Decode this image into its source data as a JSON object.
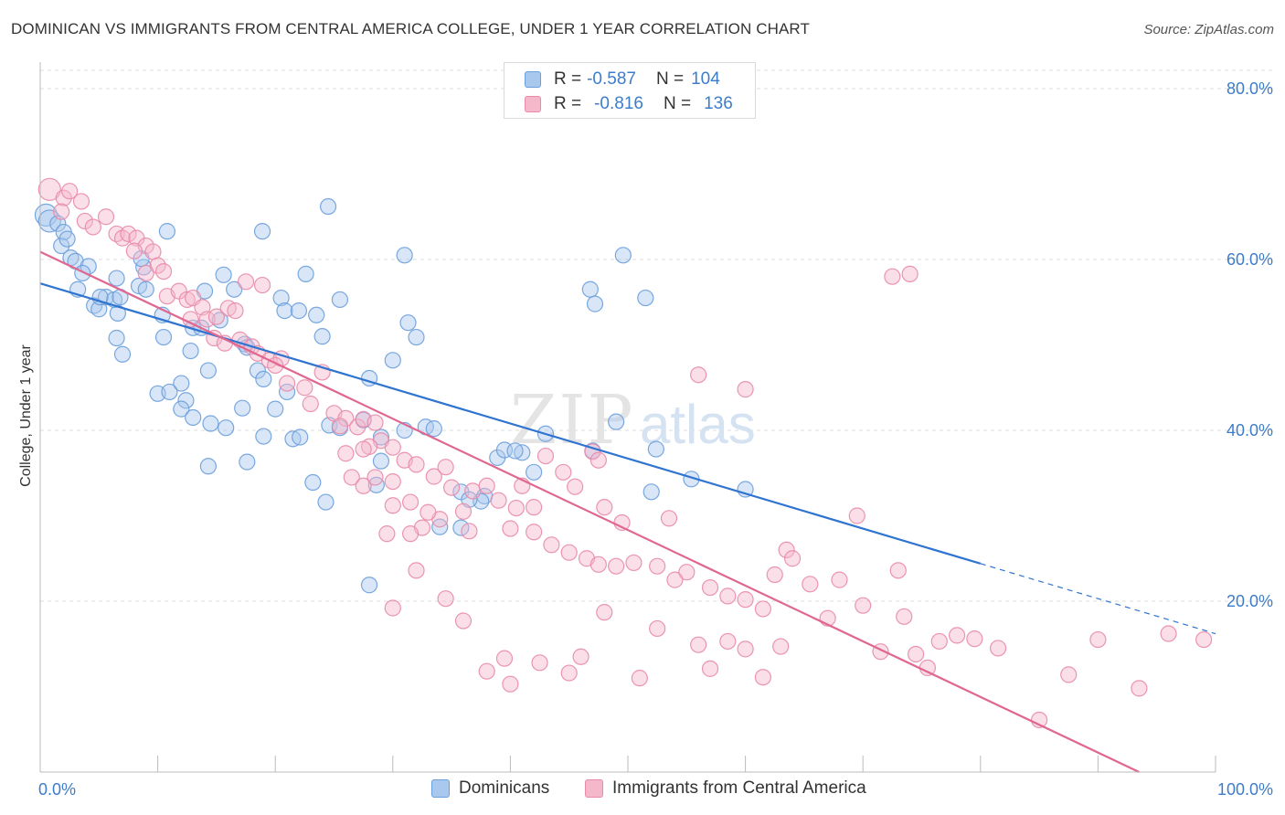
{
  "header": {
    "title": "DOMINICAN VS IMMIGRANTS FROM CENTRAL AMERICA COLLEGE, UNDER 1 YEAR CORRELATION CHART",
    "source": "Source: ZipAtlas.com"
  },
  "watermark": {
    "zip": "ZIP",
    "atlas": "atlas"
  },
  "legend_box": {
    "rows": [
      {
        "r_label": "R =",
        "r_value": "-0.587",
        "n_label": "N =",
        "n_value": "104"
      },
      {
        "r_label": "R =",
        "r_value": "-0.816",
        "n_label": "N =",
        "n_value": "136"
      }
    ]
  },
  "bottom_legend": {
    "items": [
      "Dominicans",
      "Immigrants from Central America"
    ]
  },
  "colors": {
    "blue_fill": "#a9c8ee",
    "blue_stroke": "#6b9fdc",
    "blue_line": "#2f74d0",
    "pink_fill": "#f5b8cb",
    "pink_stroke": "#e98aa8",
    "pink_line": "#e0678f",
    "grid": "#dddddd",
    "axis_text": "#3d7cc9"
  },
  "chart_data": {
    "type": "scatter",
    "title": "DOMINICAN VS IMMIGRANTS FROM CENTRAL AMERICA COLLEGE, UNDER 1 YEAR CORRELATION CHART",
    "xlabel": "",
    "ylabel": "College, Under 1 year",
    "xlim": [
      0,
      100
    ],
    "ylim": [
      0,
      85
    ],
    "x_tick_labels": [
      "0.0%",
      "100.0%"
    ],
    "y_ticks": [
      20,
      40,
      60,
      80
    ],
    "y_tick_labels": [
      "20.0%",
      "40.0%",
      "60.0%",
      "80.0%"
    ],
    "grid": true,
    "legend_position": "top-center",
    "series": [
      {
        "name": "Dominicans",
        "R": -0.587,
        "N": 104,
        "trend": {
          "x": [
            0,
            80
          ],
          "y": [
            57.2,
            24.4
          ],
          "dashed_to": [
            100,
            16.2
          ]
        },
        "points": [
          [
            0.5,
            65.2
          ],
          [
            0.8,
            64.5
          ],
          [
            1.5,
            64.2
          ],
          [
            2.0,
            63.2
          ],
          [
            1.8,
            61.6
          ],
          [
            2.3,
            62.4
          ],
          [
            2.6,
            60.2
          ],
          [
            3.0,
            59.8
          ],
          [
            4.1,
            59.2
          ],
          [
            3.6,
            58.4
          ],
          [
            3.2,
            56.5
          ],
          [
            4.6,
            54.6
          ],
          [
            5.0,
            54.2
          ],
          [
            6.6,
            53.7
          ],
          [
            5.6,
            55.6
          ],
          [
            6.3,
            55.3
          ],
          [
            6.8,
            55.6
          ],
          [
            5.1,
            55.6
          ],
          [
            6.5,
            57.8
          ],
          [
            8.4,
            56.9
          ],
          [
            9.0,
            56.5
          ],
          [
            8.8,
            59.1
          ],
          [
            8.6,
            60.1
          ],
          [
            10.8,
            63.3
          ],
          [
            10.4,
            53.5
          ],
          [
            6.5,
            50.8
          ],
          [
            7.0,
            48.9
          ],
          [
            10.5,
            50.9
          ],
          [
            12.8,
            49.3
          ],
          [
            13.0,
            52.0
          ],
          [
            13.7,
            52.0
          ],
          [
            15.3,
            52.9
          ],
          [
            14.0,
            56.3
          ],
          [
            15.6,
            58.2
          ],
          [
            16.5,
            56.5
          ],
          [
            18.9,
            63.3
          ],
          [
            17.4,
            50.1
          ],
          [
            17.6,
            49.7
          ],
          [
            18.5,
            47.0
          ],
          [
            19.0,
            46.0
          ],
          [
            20.5,
            55.5
          ],
          [
            20.8,
            54.0
          ],
          [
            22.0,
            54.0
          ],
          [
            22.6,
            58.3
          ],
          [
            23.5,
            53.5
          ],
          [
            24.0,
            51.0
          ],
          [
            25.5,
            55.3
          ],
          [
            24.5,
            66.2
          ],
          [
            14.3,
            47.0
          ],
          [
            12.0,
            45.5
          ],
          [
            10.0,
            44.3
          ],
          [
            11.0,
            44.5
          ],
          [
            12.4,
            43.5
          ],
          [
            14.5,
            40.8
          ],
          [
            12.0,
            42.5
          ],
          [
            13.0,
            41.5
          ],
          [
            15.8,
            40.3
          ],
          [
            17.2,
            42.6
          ],
          [
            19.0,
            39.3
          ],
          [
            20.0,
            42.5
          ],
          [
            21.5,
            39.0
          ],
          [
            22.1,
            39.2
          ],
          [
            24.6,
            40.6
          ],
          [
            25.5,
            40.3
          ],
          [
            28.0,
            46.1
          ],
          [
            30.0,
            48.2
          ],
          [
            32.0,
            50.9
          ],
          [
            31.3,
            52.6
          ],
          [
            31.0,
            60.5
          ],
          [
            21.0,
            44.5
          ],
          [
            14.3,
            35.8
          ],
          [
            17.6,
            36.3
          ],
          [
            23.2,
            33.9
          ],
          [
            24.3,
            31.6
          ],
          [
            27.5,
            41.2
          ],
          [
            29.0,
            39.2
          ],
          [
            31.0,
            40.0
          ],
          [
            29.0,
            36.4
          ],
          [
            28.6,
            33.6
          ],
          [
            32.8,
            40.4
          ],
          [
            33.5,
            40.2
          ],
          [
            35.8,
            32.8
          ],
          [
            37.8,
            32.3
          ],
          [
            38.9,
            36.8
          ],
          [
            39.5,
            37.7
          ],
          [
            41.0,
            37.4
          ],
          [
            40.4,
            37.6
          ],
          [
            42.0,
            35.1
          ],
          [
            43.0,
            39.6
          ],
          [
            47.0,
            37.6
          ],
          [
            46.8,
            56.5
          ],
          [
            47.2,
            54.8
          ],
          [
            49.0,
            41.0
          ],
          [
            52.0,
            32.8
          ],
          [
            55.4,
            34.3
          ],
          [
            51.5,
            55.5
          ],
          [
            49.6,
            60.5
          ],
          [
            52.4,
            37.8
          ],
          [
            60.0,
            33.1
          ],
          [
            35.8,
            28.6
          ],
          [
            34.0,
            28.7
          ],
          [
            37.5,
            31.7
          ],
          [
            36.5,
            31.9
          ],
          [
            28.0,
            21.9
          ]
        ]
      },
      {
        "name": "Immigrants from Central America",
        "R": -0.816,
        "N": 136,
        "trend": {
          "x": [
            0,
            93.5
          ],
          "y": [
            60.9,
            0
          ]
        },
        "points": [
          [
            0.8,
            68.2
          ],
          [
            2.0,
            67.2
          ],
          [
            2.5,
            68.0
          ],
          [
            3.5,
            66.8
          ],
          [
            5.6,
            65.0
          ],
          [
            1.8,
            65.6
          ],
          [
            3.8,
            64.5
          ],
          [
            4.5,
            63.8
          ],
          [
            6.5,
            63.0
          ],
          [
            7.0,
            62.5
          ],
          [
            7.5,
            63.0
          ],
          [
            8.2,
            62.5
          ],
          [
            9.0,
            61.6
          ],
          [
            8.0,
            61.0
          ],
          [
            9.6,
            60.9
          ],
          [
            10.0,
            59.3
          ],
          [
            10.5,
            58.6
          ],
          [
            9.0,
            58.4
          ],
          [
            10.8,
            55.7
          ],
          [
            11.8,
            56.3
          ],
          [
            12.5,
            55.3
          ],
          [
            13.0,
            55.5
          ],
          [
            13.8,
            54.4
          ],
          [
            12.8,
            53.0
          ],
          [
            14.2,
            53.0
          ],
          [
            15.0,
            53.3
          ],
          [
            16.0,
            54.3
          ],
          [
            16.6,
            54.0
          ],
          [
            17.5,
            57.4
          ],
          [
            18.9,
            57.0
          ],
          [
            14.8,
            50.8
          ],
          [
            15.7,
            50.2
          ],
          [
            17.0,
            50.6
          ],
          [
            18.0,
            49.8
          ],
          [
            18.5,
            49.0
          ],
          [
            19.5,
            48.2
          ],
          [
            20.5,
            48.4
          ],
          [
            20.0,
            47.6
          ],
          [
            21.0,
            45.5
          ],
          [
            22.5,
            45.0
          ],
          [
            24.0,
            46.8
          ],
          [
            23.0,
            43.1
          ],
          [
            25.0,
            42.0
          ],
          [
            26.0,
            41.4
          ],
          [
            25.5,
            40.5
          ],
          [
            27.0,
            40.4
          ],
          [
            27.5,
            41.3
          ],
          [
            28.5,
            40.9
          ],
          [
            29.0,
            38.8
          ],
          [
            30.0,
            38.0
          ],
          [
            28.0,
            38.1
          ],
          [
            27.5,
            37.8
          ],
          [
            26.0,
            37.3
          ],
          [
            26.5,
            34.5
          ],
          [
            27.5,
            33.5
          ],
          [
            28.5,
            34.5
          ],
          [
            30.0,
            34.0
          ],
          [
            31.0,
            36.5
          ],
          [
            32.0,
            36.0
          ],
          [
            33.5,
            34.6
          ],
          [
            34.5,
            35.7
          ],
          [
            35.0,
            33.3
          ],
          [
            36.8,
            32.9
          ],
          [
            38.0,
            33.5
          ],
          [
            39.0,
            31.8
          ],
          [
            40.5,
            30.9
          ],
          [
            41.0,
            33.5
          ],
          [
            42.0,
            31.0
          ],
          [
            43.0,
            37.0
          ],
          [
            44.5,
            35.1
          ],
          [
            45.5,
            33.4
          ],
          [
            47.0,
            37.5
          ],
          [
            47.5,
            36.5
          ],
          [
            48.0,
            31.0
          ],
          [
            49.5,
            29.2
          ],
          [
            36.0,
            30.5
          ],
          [
            34.0,
            29.6
          ],
          [
            32.5,
            28.6
          ],
          [
            33.0,
            30.4
          ],
          [
            30.0,
            31.2
          ],
          [
            31.5,
            31.6
          ],
          [
            29.5,
            27.9
          ],
          [
            31.5,
            27.9
          ],
          [
            36.5,
            28.2
          ],
          [
            40.0,
            28.5
          ],
          [
            42.0,
            28.1
          ],
          [
            43.5,
            26.6
          ],
          [
            45.0,
            25.7
          ],
          [
            46.5,
            25.0
          ],
          [
            47.5,
            24.3
          ],
          [
            49.0,
            24.1
          ],
          [
            50.5,
            24.5
          ],
          [
            52.5,
            24.1
          ],
          [
            53.5,
            29.7
          ],
          [
            55.0,
            23.4
          ],
          [
            54.0,
            22.5
          ],
          [
            57.0,
            21.6
          ],
          [
            58.5,
            20.6
          ],
          [
            60.0,
            20.2
          ],
          [
            61.5,
            19.1
          ],
          [
            62.5,
            23.1
          ],
          [
            63.5,
            26.0
          ],
          [
            64.0,
            25.0
          ],
          [
            65.5,
            22.0
          ],
          [
            67.0,
            18.0
          ],
          [
            68.0,
            22.5
          ],
          [
            69.5,
            30.0
          ],
          [
            70.0,
            19.5
          ],
          [
            71.5,
            14.1
          ],
          [
            73.5,
            18.2
          ],
          [
            73.0,
            23.6
          ],
          [
            74.5,
            13.8
          ],
          [
            75.5,
            12.2
          ],
          [
            76.5,
            15.3
          ],
          [
            78.0,
            16.0
          ],
          [
            79.5,
            15.6
          ],
          [
            81.5,
            14.5
          ],
          [
            56.0,
            14.9
          ],
          [
            57.0,
            12.1
          ],
          [
            58.5,
            15.3
          ],
          [
            60.0,
            14.4
          ],
          [
            61.5,
            11.1
          ],
          [
            63.0,
            14.7
          ],
          [
            52.5,
            16.8
          ],
          [
            51.0,
            11.0
          ],
          [
            48.0,
            18.7
          ],
          [
            46.0,
            13.5
          ],
          [
            45.0,
            11.6
          ],
          [
            42.5,
            12.8
          ],
          [
            40.0,
            10.3
          ],
          [
            39.5,
            13.3
          ],
          [
            38.0,
            11.8
          ],
          [
            36.0,
            17.7
          ],
          [
            34.5,
            20.3
          ],
          [
            32.0,
            23.6
          ],
          [
            30.0,
            19.2
          ],
          [
            93.5,
            9.8
          ],
          [
            85.0,
            6.1
          ],
          [
            87.5,
            11.4
          ],
          [
            90.0,
            15.5
          ],
          [
            96.0,
            16.2
          ],
          [
            99.0,
            15.5
          ],
          [
            72.5,
            58.0
          ],
          [
            74.0,
            58.3
          ],
          [
            60.0,
            44.8
          ],
          [
            56.0,
            46.5
          ]
        ]
      }
    ]
  }
}
